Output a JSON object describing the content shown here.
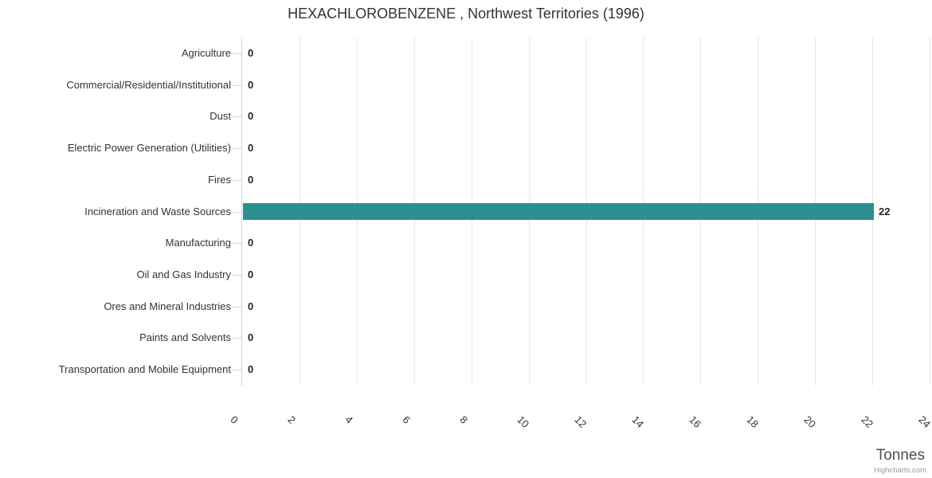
{
  "chart_data": {
    "type": "bar",
    "orientation": "horizontal",
    "title": "HEXACHLOROBENZENE , Northwest Territories (1996)",
    "categories": [
      "Agriculture",
      "Commercial/Residential/Institutional",
      "Dust",
      "Electric Power Generation (Utilities)",
      "Fires",
      "Incineration and Waste Sources",
      "Manufacturing",
      "Oil and Gas Industry",
      "Ores and Mineral Industries",
      "Paints and Solvents",
      "Transportation and Mobile Equipment"
    ],
    "values": [
      0,
      0,
      0,
      0,
      0,
      22,
      0,
      0,
      0,
      0,
      0
    ],
    "data_labels": [
      "0",
      "0",
      "0",
      "0",
      "0",
      "22",
      "0",
      "0",
      "0",
      "0",
      "0"
    ],
    "value_axis": {
      "label": "Tonnes",
      "min": 0,
      "max": 24,
      "tick_interval": 2,
      "tick_labels": [
        "0",
        "2",
        "4",
        "6",
        "8",
        "10",
        "12",
        "14",
        "16",
        "18",
        "20",
        "22",
        "24"
      ],
      "tick_label_rotation_deg": 45
    },
    "legend": "none",
    "grid": "vertical-only",
    "colors": {
      "bar": "#2b908f",
      "title": "#333333",
      "axis_line": "#ccd6eb",
      "gridline": "#e6e6e6",
      "category_label": "#333333",
      "tick_label": "#333333",
      "data_label": "#222222",
      "value_axis_title": "#4d4d4d",
      "credits": "#999999",
      "background": "#ffffff"
    },
    "credits": "Highcharts.com"
  }
}
